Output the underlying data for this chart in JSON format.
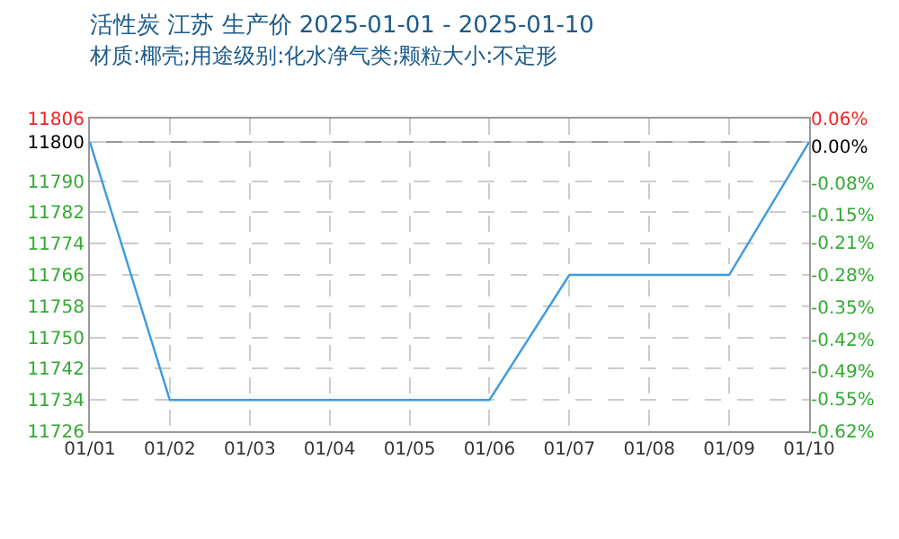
{
  "chart_data": {
    "type": "line",
    "title": "活性炭 江苏 生产价 2025-01-01 - 2025-01-10",
    "subtitle": "材质:椰壳;用途级别:化水净气类;颗粒大小:不定形",
    "categories": [
      "01/01",
      "01/02",
      "01/03",
      "01/04",
      "01/05",
      "01/06",
      "01/07",
      "01/08",
      "01/09",
      "01/10"
    ],
    "series": [
      {
        "color": "#3d9be0",
        "values": [
          11800,
          11734,
          11734,
          11734,
          11734,
          11734,
          11766,
          11766,
          11766,
          11800
        ]
      }
    ],
    "ylim": [
      11726,
      11806
    ],
    "yticks": [
      11726,
      11734,
      11742,
      11750,
      11758,
      11766,
      11774,
      11782,
      11790,
      11800,
      11806
    ],
    "y2lim": [
      -0.62,
      0.06
    ],
    "y2ticks": [
      {
        "value": -0.62,
        "label": "-0.62%"
      },
      {
        "value": -0.55,
        "label": "-0.55%"
      },
      {
        "value": -0.49,
        "label": "-0.49%"
      },
      {
        "value": -0.42,
        "label": "-0.42%"
      },
      {
        "value": -0.35,
        "label": "-0.35%"
      },
      {
        "value": -0.28,
        "label": "-0.28%"
      },
      {
        "value": -0.21,
        "label": "-0.21%"
      },
      {
        "value": -0.15,
        "label": "-0.15%"
      },
      {
        "value": -0.08,
        "label": "-0.08%"
      },
      {
        "value": 0,
        "label": "0.00%"
      },
      {
        "value": 0.06,
        "label": "0.06%"
      }
    ],
    "ref_lines": [
      {
        "axis": "y",
        "value": 11800,
        "color": "#999999"
      }
    ],
    "grid": true,
    "legend": false,
    "marker": "none",
    "line_style": "solid"
  }
}
